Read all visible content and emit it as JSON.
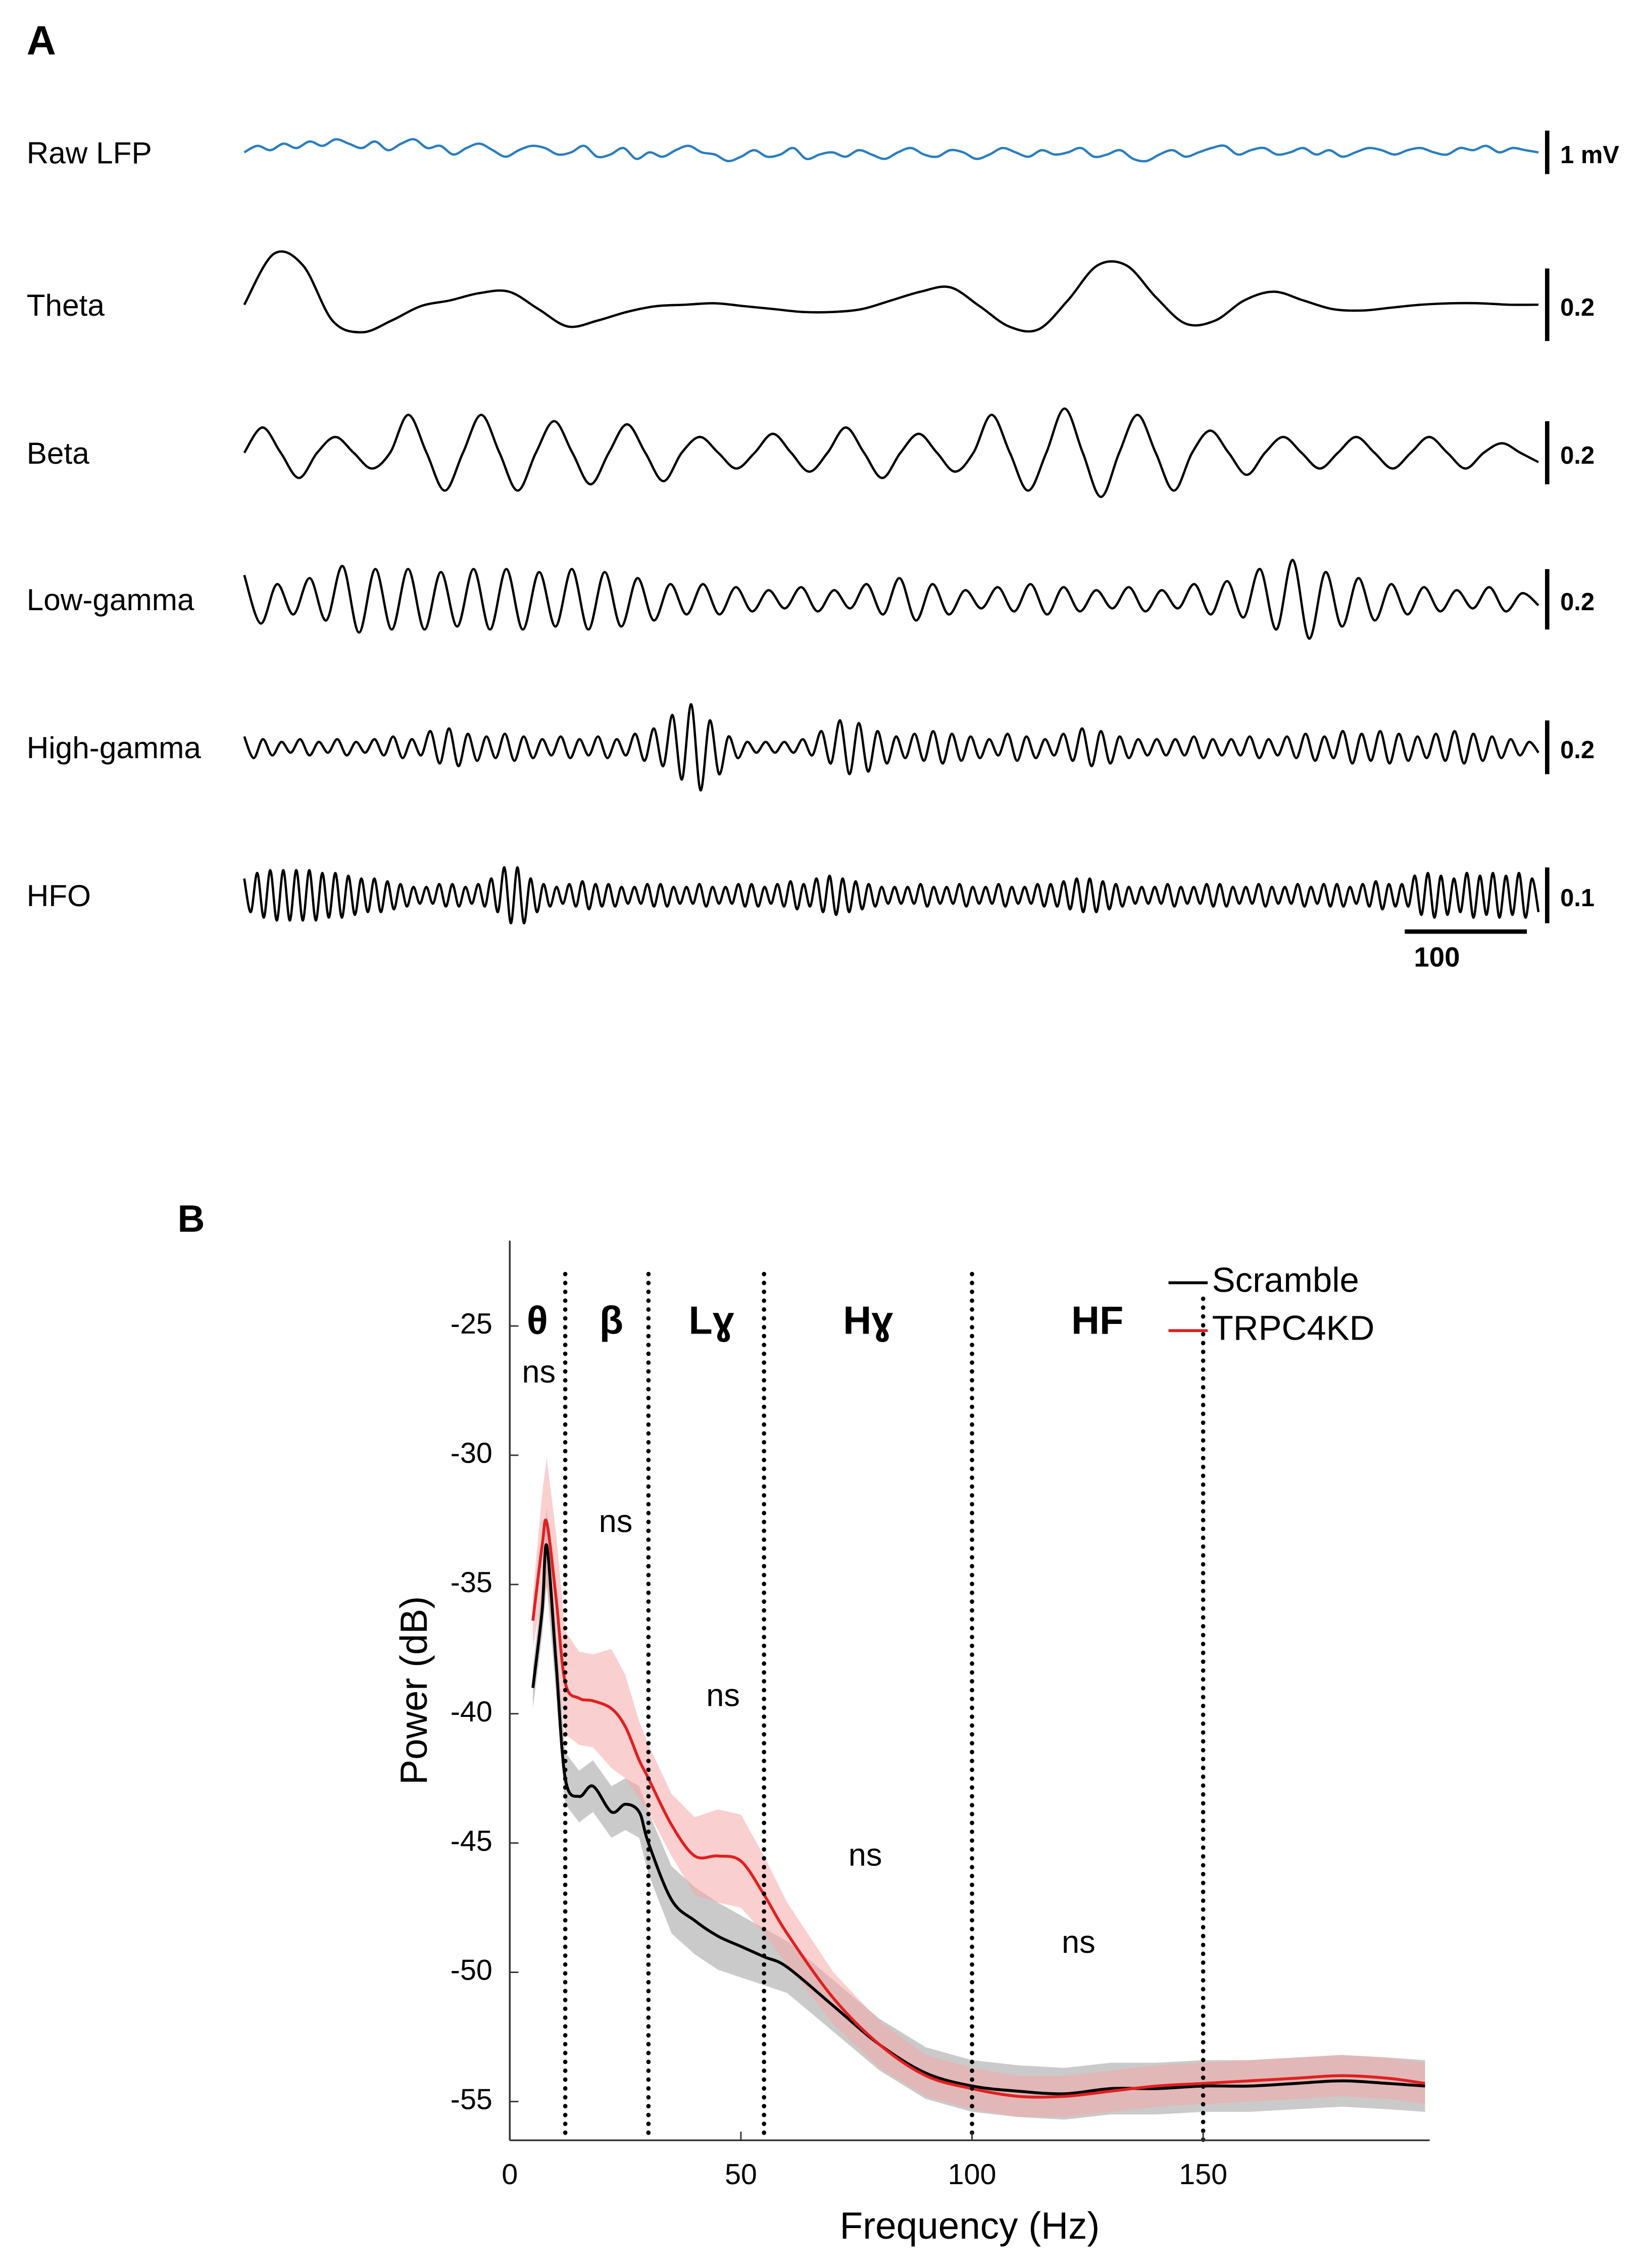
{
  "chart_data": [
    {
      "type": "traces",
      "label": "A",
      "xlim": [
        0,
        1060
      ],
      "x_scale_bar": 100,
      "series": [
        {
          "name": "Raw LFP",
          "color": "#2a7dbf",
          "ylim": [
            -1.67,
            1.67
          ],
          "scale_bar": {
            "value": 1,
            "label": "1 mV"
          },
          "values": [
            0.0,
            0.15,
            0.05,
            0.2,
            0.1,
            0.25,
            0.15,
            0.3,
            0.2,
            0.1,
            0.25,
            0.05,
            0.2,
            0.3,
            0.1,
            0.15,
            -0.05,
            0.1,
            0.2,
            0.05,
            -0.1,
            0.05,
            0.15,
            0.1,
            -0.05,
            0.0,
            0.15,
            -0.1,
            -0.05,
            0.1,
            -0.15,
            0.0,
            -0.1,
            0.05,
            0.15,
            0.0,
            -0.05,
            -0.2,
            -0.1,
            0.05,
            -0.1,
            -0.05,
            0.1,
            -0.15,
            -0.05,
            0.0,
            -0.1,
            0.05,
            -0.05,
            -0.15,
            0.0,
            0.1,
            -0.05,
            -0.1,
            0.05,
            0.0,
            -0.15,
            -0.05,
            0.1,
            0.0,
            -0.1,
            0.05,
            -0.05,
            0.0,
            0.1,
            -0.1,
            -0.05,
            0.05,
            -0.15,
            -0.2,
            -0.05,
            0.05,
            -0.1,
            0.0,
            0.1,
            0.15,
            -0.05,
            0.05,
            0.1,
            -0.05,
            0.0,
            0.1,
            -0.05,
            0.05,
            -0.1,
            0.0,
            0.1,
            0.05,
            -0.05,
            0.05,
            0.1,
            0.0,
            -0.05,
            0.1,
            0.05,
            0.15,
            0.0,
            0.1,
            0.05,
            0.0
          ]
        },
        {
          "name": "Theta",
          "color": "#000000",
          "ylim": [
            -0.2,
            0.2
          ],
          "scale_bar": 0.2,
          "values": [
            0,
            0.14,
            0.108,
            -0.044,
            -0.076,
            -0.044,
            -0.004,
            0.012,
            0.032,
            0.036,
            -0.012,
            -0.06,
            -0.044,
            -0.02,
            -0.004,
            0,
            0.004,
            -0.004,
            -0.012,
            -0.02,
            -0.02,
            -0.012,
            0.012,
            0.036,
            0.048,
            -0.004,
            -0.06,
            -0.068,
            0.012,
            0.108,
            0.108,
            0.02,
            -0.052,
            -0.044,
            0.012,
            0.036,
            0.012,
            -0.012,
            -0.016,
            -0.008,
            0,
            0.004,
            0.004,
            0,
            0
          ]
        },
        {
          "name": "Beta",
          "color": "#000000",
          "ylim": [
            -0.23,
            0.23
          ],
          "scale_bar": 0.2,
          "values": [
            0,
            0.08,
            0,
            -0.08,
            0,
            0.05,
            0,
            -0.05,
            0,
            0.12,
            0,
            -0.12,
            0,
            0.12,
            0,
            -0.12,
            0,
            0.1,
            0,
            -0.1,
            0,
            0.09,
            0,
            -0.09,
            0,
            0.05,
            0,
            -0.05,
            0,
            0.06,
            0,
            -0.06,
            0,
            0.08,
            0,
            -0.08,
            0,
            0.06,
            0,
            -0.06,
            0,
            0.12,
            0,
            -0.12,
            0,
            0.14,
            0,
            -0.14,
            0,
            0.12,
            0,
            -0.12,
            0,
            0.07,
            0,
            -0.07,
            0,
            0.05,
            0,
            -0.05,
            0,
            0.05,
            0,
            -0.05,
            0,
            0.05,
            0,
            -0.05,
            0,
            0.03,
            0,
            -0.03
          ]
        },
        {
          "name": "Low-gamma",
          "color": "#000000",
          "ylim": [
            -0.24,
            0.24
          ],
          "scale_bar": 0.2,
          "values": [
            0.08,
            -0.08,
            0.05,
            -0.05,
            0.07,
            -0.07,
            0.11,
            -0.11,
            0.1,
            -0.1,
            0.1,
            -0.1,
            0.09,
            -0.09,
            0.1,
            -0.1,
            0.1,
            -0.1,
            0.09,
            -0.09,
            0.1,
            -0.1,
            0.09,
            -0.09,
            0.07,
            -0.07,
            0.05,
            -0.05,
            0.05,
            -0.05,
            0.04,
            -0.04,
            0.03,
            -0.03,
            0.04,
            -0.04,
            0.03,
            -0.03,
            0.05,
            -0.05,
            0.07,
            -0.07,
            0.05,
            -0.05,
            0.03,
            -0.03,
            0.04,
            -0.04,
            0.05,
            -0.05,
            0.04,
            -0.04,
            0.03,
            -0.03,
            0.04,
            -0.04,
            0.03,
            -0.03,
            0.05,
            -0.05,
            0.06,
            -0.06,
            0.1,
            -0.1,
            0.13,
            -0.13,
            0.09,
            -0.09,
            0.07,
            -0.07,
            0.05,
            -0.05,
            0.04,
            -0.04,
            0.03,
            -0.03,
            0.04,
            -0.04,
            0.02,
            -0.02
          ]
        },
        {
          "name": "High-gamma",
          "color": "#000000",
          "ylim": [
            -0.27,
            0.27
          ],
          "scale_bar": 0.2,
          "values": [
            0.04,
            -0.04,
            0.03,
            -0.03,
            0.02,
            -0.02,
            0.03,
            -0.03,
            0.02,
            -0.02,
            0.03,
            -0.03,
            0.02,
            -0.02,
            0.03,
            -0.03,
            0.04,
            -0.04,
            0.03,
            -0.03,
            0.06,
            -0.06,
            0.07,
            -0.07,
            0.05,
            -0.05,
            0.04,
            -0.04,
            0.05,
            -0.05,
            0.04,
            -0.04,
            0.03,
            -0.03,
            0.04,
            -0.04,
            0.03,
            -0.03,
            0.04,
            -0.04,
            0.03,
            -0.03,
            0.05,
            -0.05,
            0.07,
            -0.07,
            0.12,
            -0.12,
            0.16,
            -0.16,
            0.1,
            -0.1,
            0.04,
            -0.04,
            0.02,
            -0.02,
            0.02,
            -0.02,
            0.02,
            -0.02,
            0.03,
            -0.03,
            0.06,
            -0.06,
            0.1,
            -0.1,
            0.09,
            -0.09,
            0.06,
            -0.06,
            0.04,
            -0.04,
            0.05,
            -0.05,
            0.06,
            -0.06,
            0.05,
            -0.05,
            0.04,
            -0.04,
            0.03,
            -0.03,
            0.05,
            -0.05,
            0.04,
            -0.04,
            0.03,
            -0.03,
            0.05,
            -0.05,
            0.07,
            -0.07,
            0.06,
            -0.06,
            0.04,
            -0.04,
            0.03,
            -0.03,
            0.03,
            -0.03,
            0.03,
            -0.03,
            0.04,
            -0.04,
            0.03,
            -0.03,
            0.03,
            -0.03,
            0.04,
            -0.04,
            0.03,
            -0.03,
            0.04,
            -0.04,
            0.05,
            -0.05,
            0.04,
            -0.04,
            0.06,
            -0.06,
            0.05,
            -0.05,
            0.06,
            -0.06,
            0.05,
            -0.05,
            0.04,
            -0.04,
            0.05,
            -0.05,
            0.06,
            -0.06,
            0.05,
            -0.05,
            0.04,
            -0.04,
            0.03,
            -0.03,
            0.02,
            -0.02
          ]
        },
        {
          "name": "HFO",
          "color": "#000000",
          "ylim": [
            -0.13,
            0.13
          ],
          "scale_bar": 0.1,
          "values": [
            0.03,
            -0.03,
            0.04,
            -0.04,
            0.045,
            -0.045,
            0.045,
            -0.045,
            0.045,
            -0.045,
            0.045,
            -0.045,
            0.04,
            -0.04,
            0.04,
            -0.04,
            0.035,
            -0.035,
            0.03,
            -0.03,
            0.03,
            -0.03,
            0.025,
            -0.025,
            0.02,
            -0.02,
            0.015,
            -0.015,
            0.015,
            -0.015,
            0.02,
            -0.02,
            0.02,
            -0.02,
            0.015,
            -0.015,
            0.02,
            -0.02,
            0.03,
            -0.03,
            0.05,
            -0.05,
            0.05,
            -0.05,
            0.03,
            -0.03,
            0.02,
            -0.02,
            0.015,
            -0.015,
            0.02,
            -0.02,
            0.025,
            -0.025,
            0.02,
            -0.02,
            0.02,
            -0.02,
            0.015,
            -0.015,
            0.015,
            -0.015,
            0.02,
            -0.02,
            0.02,
            -0.02,
            0.015,
            -0.015,
            0.015,
            -0.015,
            0.02,
            -0.02,
            0.015,
            -0.015,
            0.015,
            -0.015,
            0.02,
            -0.02,
            0.02,
            -0.02,
            0.015,
            -0.015,
            0.02,
            -0.02,
            0.025,
            -0.025,
            0.02,
            -0.02,
            0.03,
            -0.03,
            0.035,
            -0.035,
            0.03,
            -0.03,
            0.025,
            -0.025,
            0.02,
            -0.02,
            0.015,
            -0.015,
            0.015,
            -0.015,
            0.015,
            -0.015,
            0.02,
            -0.02,
            0.015,
            -0.015,
            0.015,
            -0.015,
            0.02,
            -0.02,
            0.015,
            -0.015,
            0.015,
            -0.015,
            0.02,
            -0.02,
            0.015,
            -0.015,
            0.015,
            -0.015,
            0.02,
            -0.02,
            0.02,
            -0.02,
            0.025,
            -0.025,
            0.03,
            -0.03,
            0.03,
            -0.03,
            0.025,
            -0.025,
            0.02,
            -0.02,
            0.015,
            -0.015,
            0.015,
            -0.015,
            0.015,
            -0.015,
            0.02,
            -0.02,
            0.015,
            -0.015,
            0.015,
            -0.015,
            0.02,
            -0.02,
            0.02,
            -0.02,
            0.015,
            -0.015,
            0.015,
            -0.015,
            0.02,
            -0.02,
            0.015,
            -0.015,
            0.015,
            -0.015,
            0.02,
            -0.02,
            0.015,
            -0.015,
            0.02,
            -0.02,
            0.02,
            -0.02,
            0.015,
            -0.015,
            0.02,
            -0.02,
            0.025,
            -0.025,
            0.02,
            -0.02,
            0.02,
            -0.02,
            0.035,
            -0.035,
            0.04,
            -0.04,
            0.035,
            -0.035,
            0.03,
            -0.03,
            0.04,
            -0.04,
            0.035,
            -0.035,
            0.04,
            -0.04,
            0.035,
            -0.035,
            0.04,
            -0.04,
            0.03,
            -0.03
          ]
        }
      ]
    },
    {
      "type": "line",
      "label": "B",
      "xlabel": "Frequency (Hz)",
      "ylabel": "Power (dB)",
      "xlim": [
        0,
        199
      ],
      "ylim": [
        -56.5,
        -21.7
      ],
      "xticks": [
        0,
        50,
        100,
        150
      ],
      "yticks": [
        -25,
        -30,
        -35,
        -40,
        -45,
        -50,
        -55
      ],
      "legend": "top-right",
      "x": [
        5,
        7,
        8,
        10,
        12,
        15,
        18,
        22,
        25,
        28,
        30,
        35,
        40,
        45,
        50,
        55,
        60,
        70,
        80,
        90,
        100,
        110,
        120,
        130,
        140,
        150,
        160,
        170,
        180,
        190,
        198
      ],
      "series": [
        {
          "name": "Scramble",
          "color": "#000000",
          "band_color": "#b8b8b8",
          "values": [
            -39,
            -36,
            -33.5,
            -38,
            -42.5,
            -43.2,
            -42.8,
            -43.8,
            -43.5,
            -43.8,
            -45,
            -47.2,
            -48,
            -48.6,
            -49,
            -49.4,
            -49.8,
            -51.3,
            -52.8,
            -53.9,
            -54.4,
            -54.6,
            -54.7,
            -54.5,
            -54.5,
            -54.4,
            -54.4,
            -54.3,
            -54.2,
            -54.3,
            -54.4
          ],
          "errors": [
            0.8,
            1,
            1.5,
            1.2,
            1,
            1,
            1,
            1,
            1,
            1,
            1.2,
            1.3,
            1.3,
            1.3,
            1.2,
            1.1,
            1,
            1,
            1,
            1,
            1,
            1,
            1,
            1,
            1,
            1,
            1,
            1,
            1,
            1,
            1
          ]
        },
        {
          "name": "TRPC4KD",
          "color": "#e02020",
          "band_color": "#f6a8a8",
          "values": [
            -36.4,
            -33.5,
            -32.6,
            -35.5,
            -38.8,
            -39.4,
            -39.5,
            -39.8,
            -40.5,
            -41.8,
            -42.5,
            -44.3,
            -45.5,
            -45.5,
            -45.7,
            -47,
            -48.5,
            -51,
            -52.8,
            -54,
            -54.5,
            -54.8,
            -54.8,
            -54.6,
            -54.4,
            -54.3,
            -54.2,
            -54.1,
            -54,
            -54.1,
            -54.3
          ],
          "errors": [
            1,
            2,
            2.5,
            2.5,
            2,
            1.8,
            1.8,
            2.3,
            2,
            1.5,
            1.3,
            1.2,
            1.5,
            1.8,
            1.8,
            1.5,
            1.2,
            1,
            0.9,
            0.8,
            0.8,
            0.8,
            0.8,
            0.8,
            0.8,
            0.8,
            0.8,
            0.8,
            0.8,
            0.8,
            0.8
          ]
        }
      ],
      "boundaries": [
        12,
        30,
        55,
        100,
        150
      ],
      "band_labels": [
        "θ",
        "β",
        "Lɣ",
        "Hɣ",
        "HF"
      ],
      "annotations": [
        "ns",
        "ns",
        "ns",
        "ns",
        "ns"
      ]
    }
  ]
}
